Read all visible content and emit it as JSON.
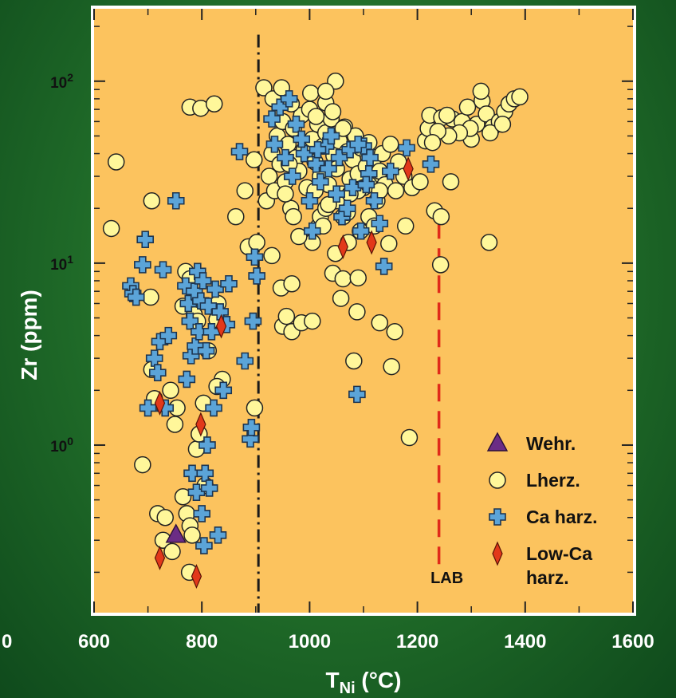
{
  "chart_data": {
    "type": "scatter",
    "xlabel": "T",
    "xlabel_sub": "Ni",
    "xlabel_unit": " (°C)",
    "ylabel": "Zr (ppm)",
    "xlim": [
      600,
      1600
    ],
    "ylim": [
      0.12,
      250
    ],
    "y_scale": "log",
    "x_ticks": [
      600,
      800,
      1000,
      1200,
      1400,
      1600
    ],
    "x_tick_labels": [
      "600",
      "800",
      "1000",
      "1200",
      "1400",
      "1600"
    ],
    "x_tick_label_left_partial": "0",
    "y_ticks": [
      1,
      10,
      100
    ],
    "y_tick_labels": [
      {
        "base": "10",
        "exp": "0"
      },
      {
        "base": "10",
        "exp": "1"
      },
      {
        "base": "10",
        "exp": "2"
      }
    ],
    "legend_position": "bottom-right",
    "reference_lines": [
      {
        "name": "dash-dot",
        "x": 905,
        "y_range": [
          0.12,
          180
        ],
        "style": "dash-dot",
        "color": "#1a1a1a"
      },
      {
        "name": "lab",
        "x": 1240,
        "y_range": [
          0.2,
          17
        ],
        "style": "dashed",
        "color": "#e02a1a",
        "label": "LAB"
      }
    ],
    "colors": {
      "plot_bg": "#fcc35e",
      "lherz_fill": "#fff79a",
      "ca_harz_fill": "#5ba4d8",
      "low_ca_fill": "#e2381a",
      "wehr_fill": "#6b2c85"
    },
    "series": [
      {
        "name": "Wehr.",
        "marker": "triangle",
        "points": [
          [
            752,
            0.32
          ]
        ]
      },
      {
        "name": "Lherz.",
        "marker": "circle",
        "points": [
          [
            641,
            36
          ],
          [
            632,
            15.5
          ],
          [
            707,
            22
          ],
          [
            705,
            6.5
          ],
          [
            690,
            0.78
          ],
          [
            707,
            2.6
          ],
          [
            712,
            1.8
          ],
          [
            718,
            0.42
          ],
          [
            728,
            0.3
          ],
          [
            732,
            0.4
          ],
          [
            745,
            0.26
          ],
          [
            742,
            2
          ],
          [
            750,
            1.3
          ],
          [
            754,
            1.6
          ],
          [
            765,
            0.52
          ],
          [
            772,
            0.42
          ],
          [
            778,
            0.36
          ],
          [
            777,
            0.2
          ],
          [
            782,
            0.32
          ],
          [
            790,
            0.95
          ],
          [
            795,
            1.15
          ],
          [
            803,
            1.7
          ],
          [
            806,
            0.6
          ],
          [
            812,
            3.3
          ],
          [
            770,
            9
          ],
          [
            778,
            8.2
          ],
          [
            765,
            5.8
          ],
          [
            786,
            5.2
          ],
          [
            792,
            4.8
          ],
          [
            830,
            6
          ],
          [
            828,
            4.9
          ],
          [
            838,
            2.3
          ],
          [
            828,
            2.1
          ],
          [
            778,
            72
          ],
          [
            798,
            71
          ],
          [
            823,
            75
          ],
          [
            863,
            18
          ],
          [
            880,
            25
          ],
          [
            886,
            12.3
          ],
          [
            897,
            37
          ],
          [
            898,
            1.6
          ],
          [
            902,
            13
          ],
          [
            915,
            92
          ],
          [
            930,
            11
          ],
          [
            947,
            7.3
          ],
          [
            950,
            4.5
          ],
          [
            957,
            5.1
          ],
          [
            967,
            4.2
          ],
          [
            967,
            7.7
          ],
          [
            985,
            4.7
          ],
          [
            1005,
            4.8
          ],
          [
            1017,
            16
          ],
          [
            1043,
            8.8
          ],
          [
            1058,
            6.4
          ],
          [
            1062,
            8.2
          ],
          [
            1048,
            11.3
          ],
          [
            1062,
            18
          ],
          [
            1082,
            2.9
          ],
          [
            1088,
            5.4
          ],
          [
            1090,
            8.3
          ],
          [
            1072,
            13
          ],
          [
            1130,
            4.7
          ],
          [
            1152,
            2.7
          ],
          [
            1158,
            4.2
          ],
          [
            1178,
            16
          ],
          [
            1147,
            12.8
          ],
          [
            1185,
            1.1
          ],
          [
            1232,
            19.4
          ],
          [
            1244,
            18
          ],
          [
            1243,
            9.8
          ],
          [
            1262,
            28
          ],
          [
            1333,
            13
          ],
          [
            920,
            22
          ],
          [
            925,
            30
          ],
          [
            930,
            40
          ],
          [
            935,
            25
          ],
          [
            940,
            50
          ],
          [
            945,
            35
          ],
          [
            950,
            60
          ],
          [
            955,
            28
          ],
          [
            960,
            45
          ],
          [
            965,
            20
          ],
          [
            970,
            55
          ],
          [
            975,
            38
          ],
          [
            980,
            32
          ],
          [
            985,
            65
          ],
          [
            990,
            42
          ],
          [
            995,
            26
          ],
          [
            1000,
            70
          ],
          [
            1005,
            48
          ],
          [
            1010,
            36
          ],
          [
            1015,
            58
          ],
          [
            1020,
            30
          ],
          [
            1025,
            44
          ],
          [
            1030,
            52
          ],
          [
            1035,
            27
          ],
          [
            1040,
            62
          ],
          [
            1045,
            39
          ],
          [
            1050,
            33
          ],
          [
            1055,
            47
          ],
          [
            1060,
            24
          ],
          [
            1065,
            56
          ],
          [
            1070,
            41
          ],
          [
            1075,
            29
          ],
          [
            1080,
            37
          ],
          [
            1085,
            50
          ],
          [
            1090,
            31
          ],
          [
            1095,
            43
          ],
          [
            1100,
            26
          ],
          [
            1105,
            34
          ],
          [
            1110,
            46
          ],
          [
            1115,
            28
          ],
          [
            1120,
            38
          ],
          [
            1125,
            22
          ],
          [
            1130,
            32
          ],
          [
            1135,
            40
          ],
          [
            1140,
            27
          ],
          [
            932,
            80
          ],
          [
            948,
            92
          ],
          [
            966,
            75
          ],
          [
            1002,
            86
          ],
          [
            1012,
            64
          ],
          [
            1030,
            76
          ],
          [
            1048,
            100
          ],
          [
            1043,
            68
          ],
          [
            1030,
            88
          ],
          [
            1062,
            55
          ],
          [
            1010,
            25
          ],
          [
            1020,
            18
          ],
          [
            1030,
            20
          ],
          [
            1050,
            22
          ],
          [
            1070,
            19
          ],
          [
            1090,
            25
          ],
          [
            1110,
            27
          ],
          [
            1130,
            25
          ],
          [
            1150,
            45
          ],
          [
            1165,
            36
          ],
          [
            1175,
            30
          ],
          [
            1190,
            26
          ],
          [
            1205,
            28
          ],
          [
            1215,
            47
          ],
          [
            1220,
            55
          ],
          [
            1025,
            16
          ],
          [
            1035,
            21
          ],
          [
            1005,
            13
          ],
          [
            970,
            18
          ],
          [
            980,
            14
          ],
          [
            955,
            24
          ],
          [
            962,
            35
          ],
          [
            1094,
            15
          ],
          [
            1075,
            24
          ],
          [
            1110,
            18
          ],
          [
            1120,
            16
          ],
          [
            1160,
            25
          ],
          [
            1223,
            65
          ],
          [
            1245,
            63
          ],
          [
            1265,
            62
          ],
          [
            1283,
            60
          ],
          [
            1293,
            72
          ],
          [
            1300,
            48
          ],
          [
            1310,
            58
          ],
          [
            1320,
            78
          ],
          [
            1328,
            66
          ],
          [
            1340,
            56
          ],
          [
            1352,
            60
          ],
          [
            1362,
            68
          ],
          [
            1370,
            75
          ],
          [
            1380,
            80
          ],
          [
            1390,
            82
          ],
          [
            1318,
            88
          ],
          [
            1298,
            55
          ],
          [
            1278,
            52
          ],
          [
            1258,
            50
          ],
          [
            1238,
            53
          ],
          [
            1228,
            46
          ],
          [
            1255,
            65
          ],
          [
            1335,
            52
          ],
          [
            1358,
            58
          ]
        ]
      },
      {
        "name": "Ca harz.",
        "marker": "plus",
        "points": [
          [
            668,
            7.5
          ],
          [
            672,
            6.8
          ],
          [
            678,
            6.5
          ],
          [
            690,
            9.8
          ],
          [
            695,
            13.5
          ],
          [
            700,
            1.6
          ],
          [
            712,
            3
          ],
          [
            718,
            2.5
          ],
          [
            722,
            3.7
          ],
          [
            728,
            9.2
          ],
          [
            732,
            1.6
          ],
          [
            738,
            4
          ],
          [
            752,
            22
          ],
          [
            770,
            7.5
          ],
          [
            772,
            2.3
          ],
          [
            775,
            6
          ],
          [
            778,
            4.8
          ],
          [
            780,
            3.1
          ],
          [
            782,
            0.7
          ],
          [
            786,
            7
          ],
          [
            788,
            3.5
          ],
          [
            790,
            0.55
          ],
          [
            792,
            9
          ],
          [
            795,
            4.2
          ],
          [
            798,
            6.2
          ],
          [
            800,
            0.42
          ],
          [
            802,
            8
          ],
          [
            804,
            0.28
          ],
          [
            806,
            0.7
          ],
          [
            808,
            3.3
          ],
          [
            810,
            1
          ],
          [
            812,
            5.8
          ],
          [
            814,
            0.58
          ],
          [
            818,
            4.2
          ],
          [
            822,
            1.6
          ],
          [
            825,
            7.2
          ],
          [
            830,
            0.32
          ],
          [
            834,
            5.4
          ],
          [
            840,
            2
          ],
          [
            846,
            4.6
          ],
          [
            850,
            7.7
          ],
          [
            870,
            41
          ],
          [
            880,
            2.9
          ],
          [
            890,
            1.08
          ],
          [
            892,
            1.25
          ],
          [
            895,
            4.8
          ],
          [
            898,
            10.8
          ],
          [
            902,
            8.5
          ],
          [
            930,
            62
          ],
          [
            945,
            72
          ],
          [
            962,
            80
          ],
          [
            975,
            58
          ],
          [
            990,
            40
          ],
          [
            1000,
            22
          ],
          [
            1005,
            15
          ],
          [
            1012,
            35
          ],
          [
            1020,
            28
          ],
          [
            1030,
            44
          ],
          [
            1040,
            50
          ],
          [
            1050,
            24
          ],
          [
            1060,
            18
          ],
          [
            1070,
            20
          ],
          [
            1080,
            26
          ],
          [
            1088,
            1.9
          ],
          [
            1095,
            15
          ],
          [
            1100,
            44
          ],
          [
            1110,
            31
          ],
          [
            1112,
            38
          ],
          [
            1120,
            22
          ],
          [
            1130,
            16.5
          ],
          [
            1138,
            9.6
          ],
          [
            1150,
            32
          ],
          [
            1180,
            43
          ],
          [
            1225,
            35
          ],
          [
            935,
            45
          ],
          [
            955,
            38
          ],
          [
            968,
            30
          ],
          [
            985,
            48
          ],
          [
            1015,
            42
          ],
          [
            1035,
            33
          ],
          [
            1055,
            38
          ],
          [
            1075,
            42
          ],
          [
            1090,
            45
          ],
          [
            1105,
            27
          ]
        ]
      },
      {
        "name": "Low-Ca harz.",
        "marker": "diamond",
        "points": [
          [
            722,
            0.24
          ],
          [
            722,
            1.7
          ],
          [
            790,
            0.19
          ],
          [
            798,
            1.3
          ],
          [
            836,
            4.5
          ],
          [
            1062,
            12.3
          ],
          [
            1115,
            13
          ],
          [
            1183,
            33
          ]
        ]
      }
    ],
    "legend": [
      {
        "marker": "triangle",
        "label": "Wehr."
      },
      {
        "marker": "circle",
        "label": "Lherz."
      },
      {
        "marker": "plus",
        "label": "Ca harz."
      },
      {
        "marker": "diamond",
        "label": "Low-Ca",
        "label2": "harz."
      }
    ]
  }
}
